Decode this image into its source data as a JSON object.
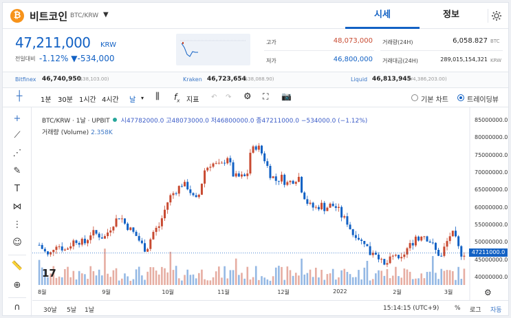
{
  "header": {
    "coin_symbol": "₿",
    "coin_name": "비트코인",
    "pair": "BTC/KRW",
    "tab_market": "시세",
    "tab_info": "정보"
  },
  "price": {
    "current": "47,211,000",
    "currency": "KRW",
    "change_label": "전일대비",
    "change_pct": "-1.12%",
    "change_abs": "▼-534,000"
  },
  "stats": {
    "high_label": "고가",
    "high_value": "48,073,000",
    "low_label": "저가",
    "low_value": "46,800,000",
    "vol_label": "거래량(24H)",
    "vol_value": "6,058.827",
    "vol_unit": "BTC",
    "amt_label": "거래대금(24H)",
    "amt_value": "289,015,154,321",
    "amt_unit": "KRW"
  },
  "exchanges": [
    {
      "name": "Bitfinex",
      "price": "46,740,950",
      "usd": "($38,103.00)"
    },
    {
      "name": "Kraken",
      "price": "46,723,654",
      "usd": "($38,088.90)"
    },
    {
      "name": "Liquid",
      "price": "46,813,945",
      "usd": "(¥4,386,203.00)"
    }
  ],
  "toolbar": {
    "t1": "1분",
    "t2": "30분",
    "t3": "1시간",
    "t4": "4시간",
    "t5": "날",
    "indicator": "지표",
    "basic_chart": "기본 차트",
    "tradingview": "트레이딩뷰"
  },
  "legend": {
    "symbol": "BTC/KRW · 1날 · UPBIT",
    "ohlc": "시47782000.0 고48073000.0 저46800000.0 종47211000.0 −534000.0 (−1.12%)",
    "volume_label": "거래량 (Volume)",
    "volume_value": "2.358K"
  },
  "bottom": {
    "r1": "30날",
    "r2": "5날",
    "r3": "1날",
    "time": "15:14:15 (UTC+9)",
    "pct": "%",
    "log": "로그",
    "auto": "자동"
  },
  "colors": {
    "up": "#c84a31",
    "down": "#1261c4",
    "accent": "#1261c4"
  },
  "chart_data": {
    "type": "candlestick",
    "y_axis_labels": [
      "85000000.0",
      "80000000.0",
      "75000000.0",
      "70000000.0",
      "65000000.0",
      "60000000.0",
      "55000000.0",
      "50000000.0",
      "45000000.0",
      "40000000.0"
    ],
    "ylim": [
      38000000,
      87000000
    ],
    "x_axis_labels": [
      "8월",
      "9월",
      "10월",
      "11월",
      "12월",
      "2022",
      "2월",
      "3월"
    ],
    "current_price": 47211000,
    "current_price_label": "47211000.0",
    "close_path": [
      [
        0,
        49500000
      ],
      [
        6,
        46000000
      ],
      [
        10,
        50000000
      ],
      [
        16,
        48000000
      ],
      [
        22,
        51000000
      ],
      [
        28,
        50000000
      ],
      [
        32,
        53000000
      ],
      [
        36,
        52500000
      ],
      [
        40,
        51500000
      ],
      [
        46,
        56000000
      ],
      [
        50,
        58000000
      ],
      [
        52,
        56000000
      ],
      [
        56,
        54000000
      ],
      [
        60,
        52000000
      ],
      [
        64,
        49000000
      ],
      [
        66,
        48000000
      ],
      [
        70,
        53000000
      ],
      [
        74,
        55000000
      ],
      [
        80,
        63000000
      ],
      [
        84,
        65000000
      ],
      [
        88,
        67000000
      ],
      [
        92,
        66000000
      ],
      [
        96,
        62000000
      ],
      [
        98,
        63000000
      ],
      [
        102,
        71000000
      ],
      [
        106,
        73000000
      ],
      [
        112,
        72000000
      ],
      [
        116,
        75000000
      ],
      [
        120,
        69000000
      ],
      [
        124,
        69000000
      ],
      [
        128,
        69000000
      ],
      [
        130,
        76000000
      ],
      [
        134,
        78000000
      ],
      [
        136,
        77000000
      ],
      [
        140,
        73000000
      ],
      [
        142,
        70000000
      ],
      [
        146,
        68000000
      ],
      [
        150,
        69000000
      ],
      [
        152,
        67000000
      ],
      [
        156,
        68000000
      ],
      [
        160,
        69000000
      ],
      [
        162,
        65000000
      ],
      [
        166,
        61000000
      ],
      [
        170,
        60000000
      ],
      [
        174,
        61000000
      ],
      [
        176,
        60000000
      ],
      [
        180,
        61000000
      ],
      [
        184,
        60000000
      ],
      [
        186,
        58000000
      ],
      [
        188,
        57000000
      ],
      [
        190,
        56000000
      ],
      [
        194,
        52000000
      ],
      [
        196,
        53000000
      ],
      [
        198,
        50000000
      ],
      [
        200,
        51000000
      ],
      [
        202,
        49000000
      ],
      [
        204,
        47000000
      ],
      [
        206,
        48000000
      ],
      [
        208,
        47000000
      ],
      [
        210,
        46000000
      ],
      [
        212,
        43000000
      ],
      [
        214,
        44000000
      ],
      [
        216,
        45000000
      ],
      [
        218,
        46000000
      ],
      [
        220,
        47000000
      ],
      [
        222,
        44000000
      ],
      [
        224,
        46000000
      ],
      [
        226,
        48000000
      ],
      [
        228,
        49000000
      ],
      [
        230,
        50000000
      ],
      [
        232,
        52000000
      ],
      [
        234,
        51000000
      ],
      [
        236,
        53000000
      ],
      [
        238,
        52000000
      ],
      [
        240,
        51000000
      ],
      [
        242,
        50000000
      ],
      [
        244,
        48000000
      ],
      [
        246,
        47000000
      ],
      [
        248,
        46000000
      ],
      [
        250,
        49000000
      ],
      [
        252,
        51000000
      ],
      [
        254,
        53000000
      ],
      [
        256,
        52000000
      ],
      [
        258,
        49000000
      ],
      [
        260,
        47000000
      ],
      [
        262,
        47211000
      ]
    ]
  }
}
